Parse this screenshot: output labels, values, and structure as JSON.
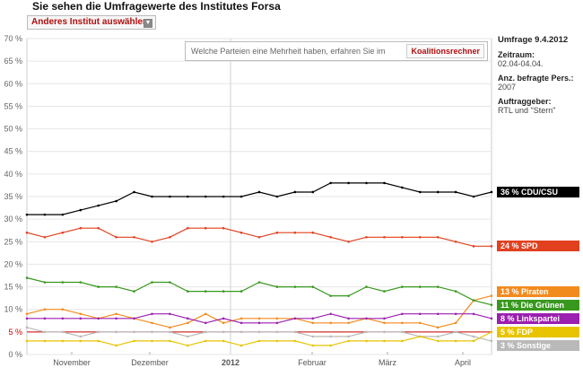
{
  "page_title": "Sie sehen die Umfragewerte des Institutes Forsa",
  "institute_select": {
    "label": "Anderes Institut auswählen",
    "arrow_icon": "chevron-down-icon"
  },
  "coalition": {
    "text": "Welche Parteien eine Mehrheit haben, erfahren Sie im",
    "button": "Koalitionsrechner"
  },
  "info": {
    "umfrage": "Umfrage 9.4.2012",
    "zeitraum_label": "Zeitraum:",
    "zeitraum": "02.04-04.04.",
    "befragte_label": "Anz. befragte Pers.:",
    "befragte": "2007",
    "auftraggeber_label": "Auftraggeber:",
    "auftraggeber": "RTL und \"Stern\""
  },
  "chart_data": {
    "type": "line",
    "ylim": [
      0,
      70
    ],
    "yticks": [
      "0 %",
      "5 %",
      "10 %",
      "15 %",
      "20 %",
      "25 %",
      "30 %",
      "35 %",
      "40 %",
      "45 %",
      "50 %",
      "55 %",
      "60 %",
      "65 %",
      "70 %"
    ],
    "xticks": [
      "November",
      "Dezember",
      "2012",
      "Februar",
      "März",
      "April"
    ],
    "threshold": 5,
    "grid": true,
    "series": [
      {
        "name": "CDU/CSU",
        "label": "36 % CDU/CSU",
        "color": "#000000",
        "values": [
          31,
          31,
          31,
          32,
          33,
          34,
          36,
          35,
          35,
          35,
          35,
          35,
          35,
          36,
          35,
          36,
          36,
          38,
          38,
          38,
          38,
          37,
          36,
          36,
          36,
          35,
          36
        ]
      },
      {
        "name": "SPD",
        "label": "24 % SPD",
        "color": "#e2401f",
        "values": [
          27,
          26,
          27,
          28,
          28,
          26,
          26,
          25,
          26,
          28,
          28,
          28,
          27,
          26,
          27,
          27,
          27,
          26,
          25,
          26,
          26,
          26,
          26,
          26,
          25,
          24,
          24
        ]
      },
      {
        "name": "Die Grünen",
        "label": "11 % Die Grünen",
        "color": "#38981e",
        "values": [
          17,
          16,
          16,
          16,
          15,
          15,
          14,
          16,
          16,
          14,
          14,
          14,
          14,
          16,
          15,
          15,
          15,
          13,
          13,
          15,
          14,
          15,
          15,
          15,
          14,
          12,
          11
        ]
      },
      {
        "name": "Piraten",
        "label": "13 % Piraten",
        "color": "#f28b1e",
        "values": [
          null,
          null,
          null,
          null,
          null,
          null,
          null,
          null,
          null,
          null,
          null,
          null,
          null,
          null,
          null,
          null,
          null,
          null,
          null,
          null,
          null,
          null,
          null,
          null,
          null,
          12,
          13
        ]
      },
      {
        "name": "Linkspartei",
        "label": "8 % Linkspartei",
        "color": "#9b1fb0",
        "values": [
          8,
          8,
          8,
          8,
          8,
          8,
          8,
          9,
          9,
          8,
          7,
          8,
          7,
          7,
          7,
          8,
          8,
          9,
          8,
          8,
          8,
          9,
          9,
          9,
          9,
          9,
          8
        ]
      },
      {
        "name": "FDP",
        "label": "5 % FDP",
        "color": "#e8c400",
        "values": [
          3,
          3,
          3,
          3,
          3,
          2,
          3,
          3,
          3,
          2,
          3,
          3,
          2,
          3,
          3,
          3,
          2,
          2,
          3,
          3,
          3,
          3,
          4,
          3,
          3,
          3,
          5
        ]
      },
      {
        "name": "Sonstige",
        "label": "3 % Sonstige",
        "color": "#b9b9b9",
        "values": [
          null,
          null,
          null,
          null,
          null,
          null,
          null,
          null,
          null,
          null,
          null,
          null,
          null,
          null,
          null,
          null,
          null,
          null,
          null,
          null,
          null,
          null,
          null,
          null,
          null,
          4,
          3
        ]
      }
    ],
    "extra_lines": [
      {
        "color": "#f28b1e",
        "values": [
          9,
          10,
          10,
          9,
          8,
          9,
          8,
          7,
          6,
          7,
          9,
          7,
          8,
          8,
          8,
          8,
          7,
          7,
          7,
          8,
          7,
          7,
          7,
          6,
          7,
          12,
          13
        ]
      },
      {
        "color": "#b9b9b9",
        "values": [
          6,
          5,
          5,
          4,
          5,
          5,
          5,
          5,
          5,
          4,
          5,
          5,
          5,
          5,
          5,
          5,
          4,
          4,
          4,
          5,
          5,
          5,
          4,
          4,
          5,
          4,
          3
        ]
      }
    ]
  }
}
